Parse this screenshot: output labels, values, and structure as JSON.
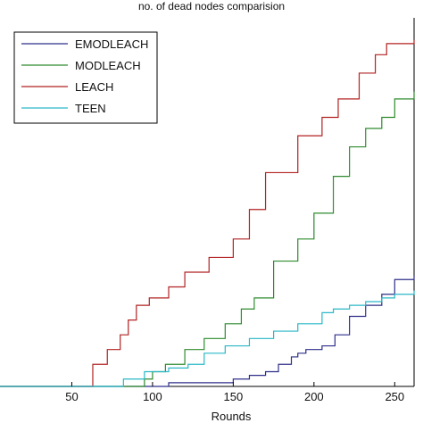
{
  "chart_data": {
    "type": "line",
    "title": "no. of dead nodes comparision",
    "xlabel": "Rounds",
    "ylabel": "",
    "xlim": [
      0,
      262
    ],
    "ylim": [
      0,
      100
    ],
    "xticks": [
      50,
      100,
      150,
      200,
      250
    ],
    "grid": false,
    "legend_position": "top-left",
    "series": [
      {
        "name": "EMODLEACH",
        "color": "#2e2e8a",
        "x": [
          0,
          107,
          110,
          146,
          150,
          160,
          170,
          178,
          186,
          190,
          195,
          205,
          213,
          222,
          232,
          242,
          250,
          262
        ],
        "y": [
          0,
          0,
          1,
          1,
          2,
          3,
          4,
          6,
          8,
          9,
          10,
          11,
          14,
          19,
          22,
          25,
          29,
          30
        ]
      },
      {
        "name": "MODLEACH",
        "color": "#2e8b2e",
        "x": [
          0,
          82,
          95,
          100,
          108,
          120,
          132,
          145,
          155,
          163,
          175,
          190,
          200,
          212,
          222,
          232,
          242,
          250,
          262
        ],
        "y": [
          0,
          0,
          2,
          4,
          6,
          10,
          13,
          17,
          21,
          24,
          34,
          40,
          47,
          57,
          65,
          70,
          73,
          78,
          80
        ]
      },
      {
        "name": "LEACH",
        "color": "#b22222",
        "x": [
          0,
          55,
          63,
          72,
          80,
          85,
          90,
          98,
          110,
          120,
          135,
          150,
          160,
          170,
          190,
          205,
          215,
          228,
          238,
          245,
          262
        ],
        "y": [
          0,
          0,
          6,
          10,
          14,
          18,
          22,
          24,
          27,
          31,
          35,
          40,
          48,
          58,
          68,
          73,
          78,
          85,
          90,
          93,
          94
        ]
      },
      {
        "name": "TEEN",
        "color": "#2ab8c6",
        "x": [
          0,
          75,
          82,
          95,
          110,
          122,
          132,
          145,
          160,
          175,
          190,
          205,
          212,
          222,
          232,
          242,
          250,
          262
        ],
        "y": [
          0,
          0,
          2,
          4,
          5,
          6,
          9,
          11,
          13,
          15,
          17,
          20,
          21,
          22,
          23,
          24,
          25,
          26
        ]
      }
    ]
  }
}
